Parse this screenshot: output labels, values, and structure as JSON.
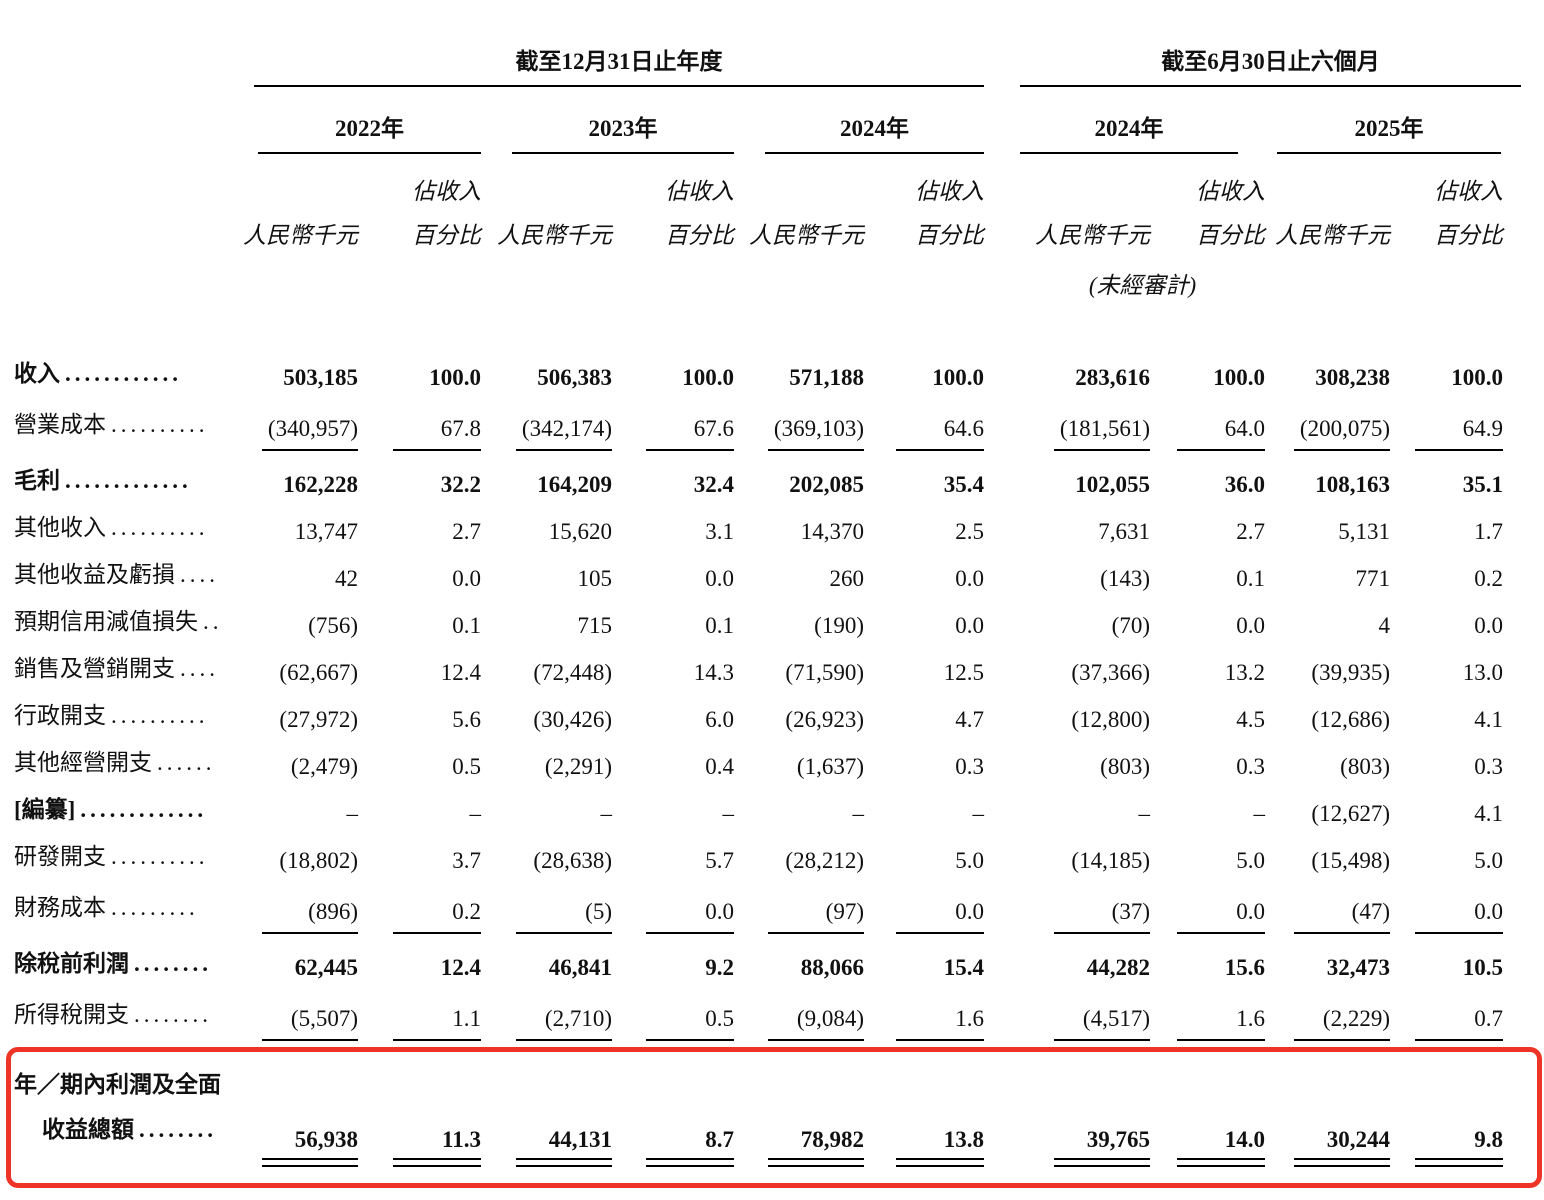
{
  "page": {
    "bg": "#ffffff",
    "text_color": "#111111",
    "accent_red": "#ee3426"
  },
  "header": {
    "group1": {
      "title": "截至12月31日止年度",
      "years": [
        "2022年",
        "2023年",
        "2024年"
      ]
    },
    "group2": {
      "title": "截至6月30日止六個月",
      "years": [
        "2024年",
        "2025年"
      ]
    },
    "col_value_label": "人民幣千元",
    "col_pct_line1": "佔收入",
    "col_pct_line2": "百分比",
    "unaudited_note": "(未經審計)"
  },
  "rows": [
    {
      "label": "收入",
      "dots": "............",
      "label_bold": true,
      "values_bold": true,
      "rule": "none",
      "values": [
        "503,185",
        "100.0",
        "506,383",
        "100.0",
        "571,188",
        "100.0",
        "283,616",
        "100.0",
        "308,238",
        "100.0"
      ]
    },
    {
      "label": "營業成本",
      "dots": "..........",
      "label_bold": false,
      "values_bold": false,
      "rule": "single",
      "values": [
        "(340,957)",
        "67.8",
        "(342,174)",
        "67.6",
        "(369,103)",
        "64.6",
        "(181,561)",
        "64.0",
        "(200,075)",
        "64.9"
      ]
    },
    {
      "label": "毛利",
      "dots": ".............",
      "label_bold": true,
      "values_bold": true,
      "rule": "none",
      "values": [
        "162,228",
        "32.2",
        "164,209",
        "32.4",
        "202,085",
        "35.4",
        "102,055",
        "36.0",
        "108,163",
        "35.1"
      ]
    },
    {
      "label": "其他收入",
      "dots": "..........",
      "label_bold": false,
      "values_bold": false,
      "rule": "none",
      "values": [
        "13,747",
        "2.7",
        "15,620",
        "3.1",
        "14,370",
        "2.5",
        "7,631",
        "2.7",
        "5,131",
        "1.7"
      ]
    },
    {
      "label": "其他收益及虧損",
      "dots": "....",
      "label_bold": false,
      "values_bold": false,
      "rule": "none",
      "values": [
        "42",
        "0.0",
        "105",
        "0.0",
        "260",
        "0.0",
        "(143)",
        "0.1",
        "771",
        "0.2"
      ]
    },
    {
      "label": "預期信用減值損失",
      "dots": "..",
      "label_bold": false,
      "values_bold": false,
      "rule": "none",
      "values": [
        "(756)",
        "0.1",
        "715",
        "0.1",
        "(190)",
        "0.0",
        "(70)",
        "0.0",
        "4",
        "0.0"
      ]
    },
    {
      "label": "銷售及營銷開支",
      "dots": "....",
      "label_bold": false,
      "values_bold": false,
      "rule": "none",
      "values": [
        "(62,667)",
        "12.4",
        "(72,448)",
        "14.3",
        "(71,590)",
        "12.5",
        "(37,366)",
        "13.2",
        "(39,935)",
        "13.0"
      ]
    },
    {
      "label": "行政開支",
      "dots": "..........",
      "label_bold": false,
      "values_bold": false,
      "rule": "none",
      "values": [
        "(27,972)",
        "5.6",
        "(30,426)",
        "6.0",
        "(26,923)",
        "4.7",
        "(12,800)",
        "4.5",
        "(12,686)",
        "4.1"
      ]
    },
    {
      "label": "其他經營開支",
      "dots": "......",
      "label_bold": false,
      "values_bold": false,
      "rule": "none",
      "values": [
        "(2,479)",
        "0.5",
        "(2,291)",
        "0.4",
        "(1,637)",
        "0.3",
        "(803)",
        "0.3",
        "(803)",
        "0.3"
      ]
    },
    {
      "label": "[編纂]",
      "dots": ".............",
      "label_bold": true,
      "values_bold": false,
      "rule": "none",
      "values": [
        "–",
        "–",
        "–",
        "–",
        "–",
        "–",
        "–",
        "–",
        "(12,627)",
        "4.1"
      ]
    },
    {
      "label": "研發開支",
      "dots": "..........",
      "label_bold": false,
      "values_bold": false,
      "rule": "none",
      "values": [
        "(18,802)",
        "3.7",
        "(28,638)",
        "5.7",
        "(28,212)",
        "5.0",
        "(14,185)",
        "5.0",
        "(15,498)",
        "5.0"
      ]
    },
    {
      "label": "財務成本",
      "dots": ".........",
      "label_bold": false,
      "values_bold": false,
      "rule": "single",
      "values": [
        "(896)",
        "0.2",
        "(5)",
        "0.0",
        "(97)",
        "0.0",
        "(37)",
        "0.0",
        "(47)",
        "0.0"
      ]
    },
    {
      "label": "除稅前利潤",
      "dots": "........",
      "label_bold": true,
      "values_bold": true,
      "rule": "none",
      "values": [
        "62,445",
        "12.4",
        "46,841",
        "9.2",
        "88,066",
        "15.4",
        "44,282",
        "15.6",
        "32,473",
        "10.5"
      ]
    },
    {
      "label": "所得稅開支",
      "dots": "........",
      "label_bold": false,
      "values_bold": false,
      "rule": "single",
      "values": [
        "(5,507)",
        "1.1",
        "(2,710)",
        "0.5",
        "(9,084)",
        "1.6",
        "(4,517)",
        "1.6",
        "(2,229)",
        "0.7"
      ]
    },
    {
      "label": "年／期內利潤及全面",
      "label2": "收益總額",
      "dots": "........",
      "label_bold": true,
      "values_bold": true,
      "rule": "double",
      "boxed": true,
      "values": [
        "56,938",
        "11.3",
        "44,131",
        "8.7",
        "78,982",
        "13.8",
        "39,765",
        "14.0",
        "30,244",
        "9.8"
      ]
    }
  ]
}
